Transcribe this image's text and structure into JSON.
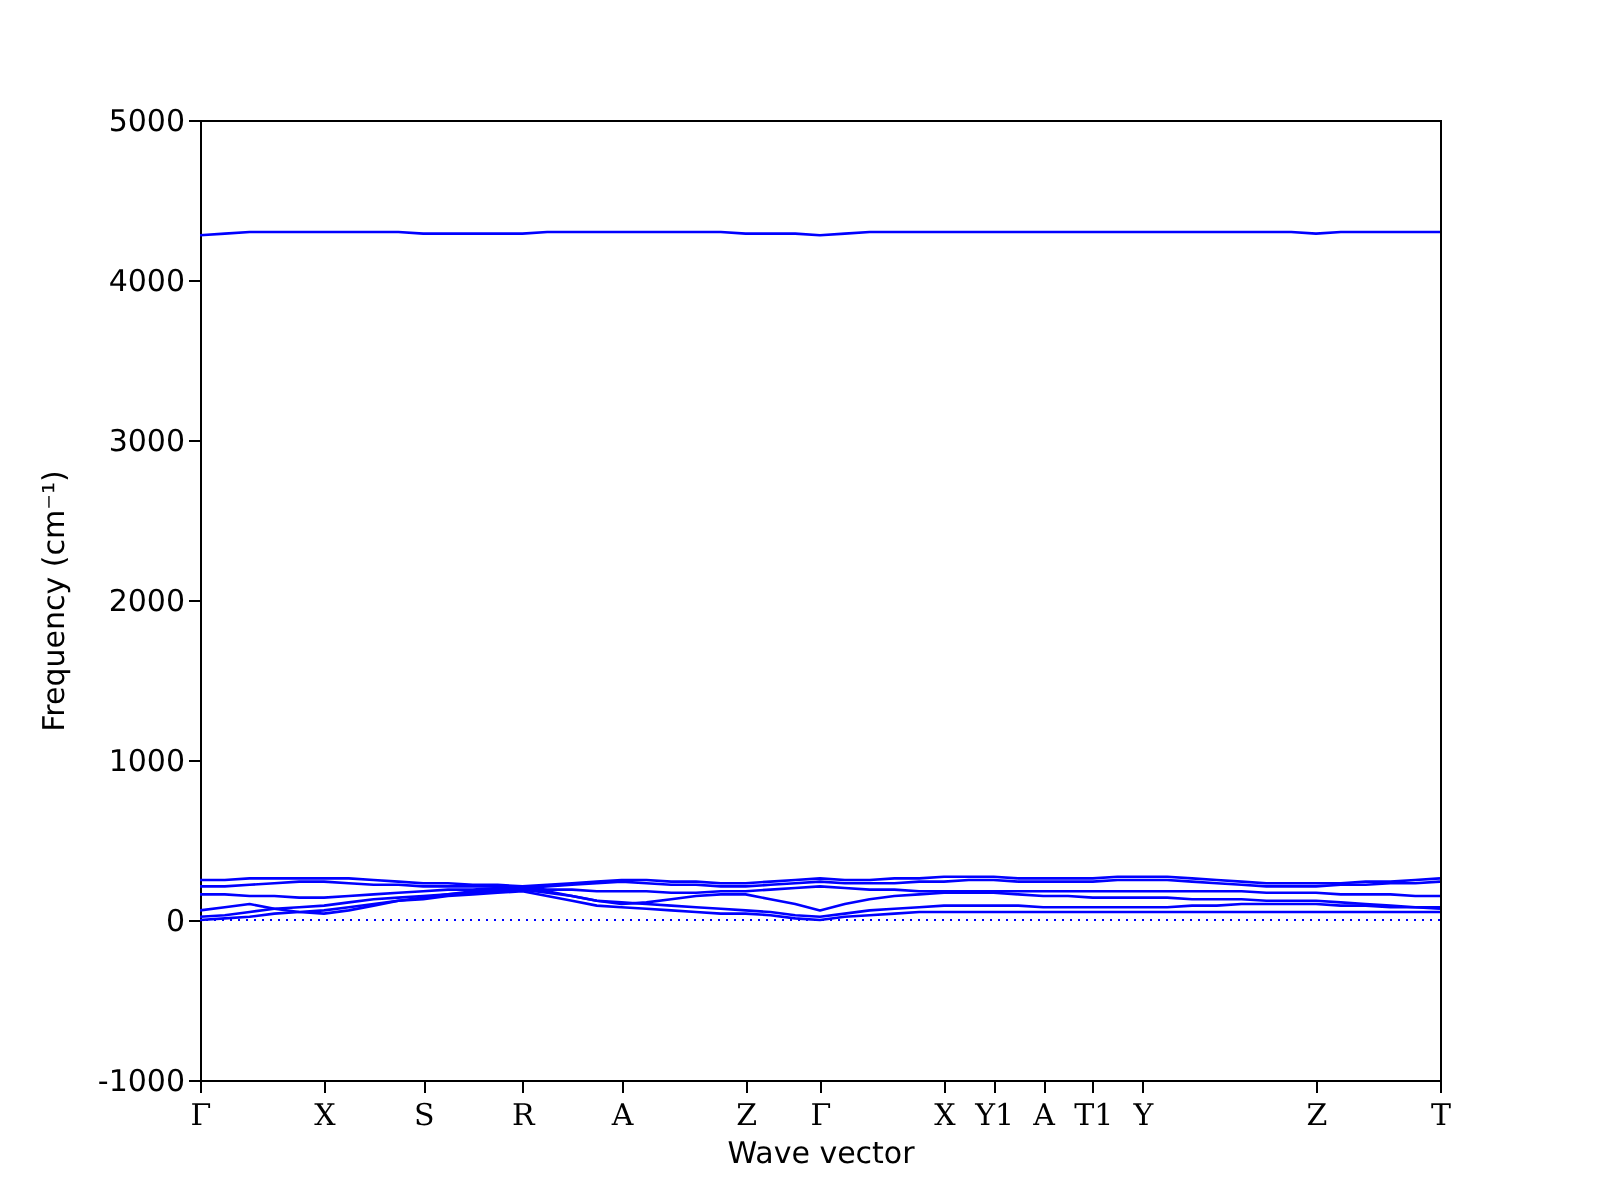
{
  "chart_data": {
    "type": "line",
    "xlabel": "Wave vector",
    "ylabel": "Frequency (cm⁻¹)",
    "ylim": [
      -1000,
      5000
    ],
    "yticks": [
      -1000,
      0,
      1000,
      2000,
      3000,
      4000,
      5000
    ],
    "categories": [
      "Γ",
      null,
      null,
      null,
      null,
      "X",
      null,
      null,
      null,
      "S",
      null,
      null,
      null,
      "R",
      null,
      null,
      null,
      "A",
      null,
      null,
      null,
      null,
      "Z",
      null,
      null,
      "Γ",
      null,
      null,
      null,
      null,
      "X",
      null,
      "Y1",
      null,
      "A",
      null,
      "T1",
      null,
      "Y",
      null,
      null,
      null,
      null,
      null,
      null,
      "Z",
      null,
      null,
      null,
      null,
      "T"
    ],
    "grid": false,
    "series": [
      {
        "color": "#0000ff",
        "values": [
          0,
          10,
          20,
          40,
          50,
          60,
          80,
          100,
          120,
          130,
          150,
          160,
          170,
          180,
          150,
          120,
          90,
          80,
          70,
          60,
          50,
          40,
          40,
          30,
          10,
          0,
          20,
          30,
          40,
          50,
          50,
          50,
          50,
          50,
          50,
          50,
          50,
          50,
          50,
          50,
          50,
          50,
          50,
          50,
          50,
          50,
          50,
          50,
          50,
          50,
          50
        ]
      },
      {
        "color": "#0000ff",
        "values": [
          20,
          30,
          50,
          70,
          80,
          90,
          110,
          130,
          140,
          150,
          160,
          170,
          180,
          190,
          170,
          150,
          120,
          110,
          100,
          90,
          80,
          70,
          60,
          50,
          30,
          20,
          40,
          60,
          70,
          80,
          90,
          90,
          90,
          90,
          80,
          80,
          80,
          80,
          80,
          80,
          90,
          90,
          100,
          100,
          100,
          100,
          90,
          90,
          80,
          80,
          80
        ]
      },
      {
        "color": "#0000ff",
        "values": [
          60,
          80,
          100,
          70,
          50,
          40,
          60,
          90,
          120,
          140,
          160,
          180,
          190,
          200,
          180,
          150,
          120,
          100,
          110,
          130,
          150,
          160,
          160,
          130,
          100,
          60,
          100,
          130,
          150,
          160,
          170,
          170,
          170,
          160,
          150,
          150,
          140,
          140,
          140,
          140,
          130,
          130,
          130,
          120,
          120,
          120,
          110,
          100,
          90,
          80,
          70
        ]
      },
      {
        "color": "#0000ff",
        "values": [
          160,
          160,
          150,
          150,
          140,
          140,
          150,
          160,
          170,
          180,
          190,
          190,
          200,
          200,
          190,
          190,
          180,
          180,
          180,
          170,
          170,
          180,
          180,
          190,
          200,
          210,
          200,
          190,
          190,
          180,
          180,
          180,
          180,
          180,
          180,
          180,
          180,
          180,
          180,
          180,
          180,
          180,
          180,
          170,
          170,
          170,
          160,
          160,
          160,
          150,
          150
        ]
      },
      {
        "color": "#0000ff",
        "values": [
          210,
          210,
          220,
          230,
          240,
          240,
          230,
          220,
          220,
          210,
          210,
          210,
          210,
          200,
          210,
          220,
          230,
          240,
          230,
          220,
          220,
          210,
          210,
          220,
          230,
          240,
          230,
          230,
          230,
          240,
          240,
          250,
          250,
          240,
          240,
          240,
          240,
          250,
          250,
          250,
          240,
          230,
          220,
          210,
          210,
          210,
          220,
          220,
          230,
          230,
          240
        ]
      },
      {
        "color": "#0000ff",
        "values": [
          250,
          250,
          260,
          260,
          260,
          260,
          260,
          250,
          240,
          230,
          230,
          220,
          220,
          210,
          220,
          230,
          240,
          250,
          250,
          240,
          240,
          230,
          230,
          240,
          250,
          260,
          250,
          250,
          260,
          260,
          270,
          270,
          270,
          260,
          260,
          260,
          260,
          270,
          270,
          270,
          260,
          250,
          240,
          230,
          230,
          230,
          230,
          240,
          240,
          250,
          260
        ]
      },
      {
        "color": "#0000ff",
        "values": [
          4280,
          4290,
          4300,
          4300,
          4300,
          4300,
          4300,
          4300,
          4300,
          4290,
          4290,
          4290,
          4290,
          4290,
          4300,
          4300,
          4300,
          4300,
          4300,
          4300,
          4300,
          4300,
          4290,
          4290,
          4290,
          4280,
          4290,
          4300,
          4300,
          4300,
          4300,
          4300,
          4300,
          4300,
          4300,
          4300,
          4300,
          4300,
          4300,
          4300,
          4300,
          4300,
          4300,
          4300,
          4300,
          4290,
          4300,
          4300,
          4300,
          4300,
          4300
        ]
      }
    ],
    "ref_lines": [
      {
        "axis": "y",
        "value": 0,
        "color": "#0000ff",
        "line_style": "dotted"
      }
    ]
  }
}
